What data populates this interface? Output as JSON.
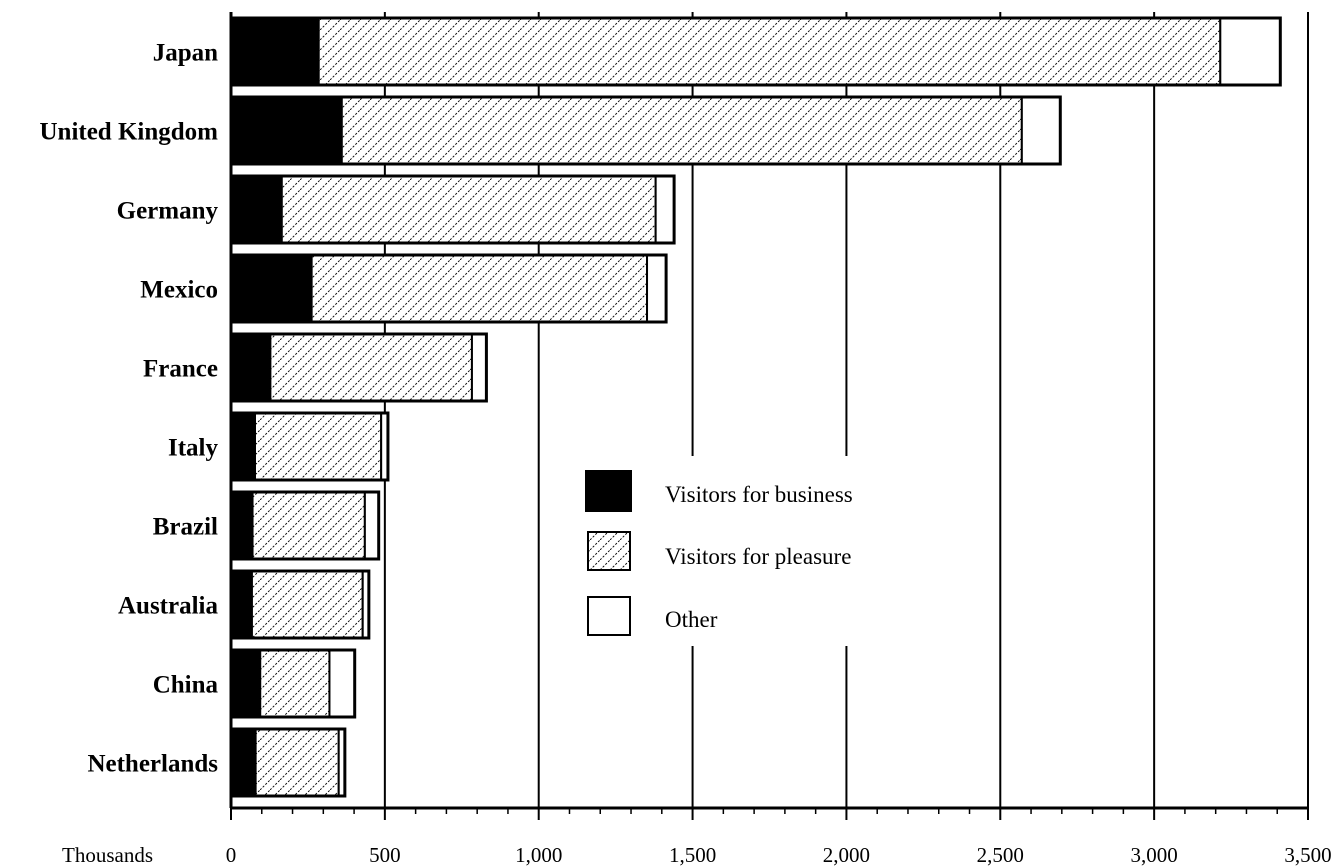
{
  "chart_data": {
    "type": "bar",
    "orientation": "horizontal",
    "stacked": true,
    "categories": [
      "Japan",
      "United Kingdom",
      "Germany",
      "Mexico",
      "France",
      "Italy",
      "Brazil",
      "Australia",
      "China",
      "Netherlands"
    ],
    "series": [
      {
        "name": "Visitors for business",
        "fill": "solid",
        "color": "#000000",
        "values": [
          285,
          360,
          165,
          262,
          128,
          78,
          70,
          68,
          95,
          80
        ]
      },
      {
        "name": "Visitors for pleasure",
        "fill": "hatched",
        "color": "#ffffff",
        "values": [
          2930,
          2210,
          1215,
          1090,
          655,
          410,
          365,
          360,
          225,
          270
        ]
      },
      {
        "name": "Other",
        "fill": "empty",
        "color": "#ffffff",
        "values": [
          195,
          125,
          60,
          62,
          47,
          22,
          45,
          20,
          82,
          20
        ]
      }
    ],
    "x_ticks": [
      "0",
      "500",
      "1,000",
      "1,500",
      "2,000",
      "2,500",
      "3,000",
      "3,500"
    ],
    "x_tick_values": [
      0,
      500,
      1000,
      1500,
      2000,
      2500,
      3000,
      3500
    ],
    "xlabel": "Thousands",
    "xlim": [
      0,
      3500
    ],
    "grid": true,
    "legend_position": "center-right"
  }
}
